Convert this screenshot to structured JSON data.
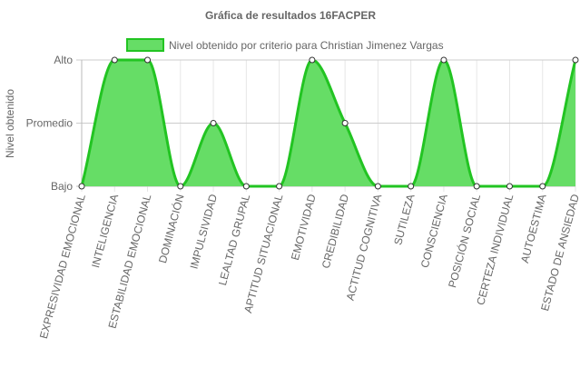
{
  "chart_data": {
    "type": "area",
    "title": "Gráfica de resultados 16FACPER",
    "ylabel": "Nivel obtenido",
    "xlabel": "",
    "y_levels": [
      "Bajo",
      "Promedio",
      "Alto"
    ],
    "ylim": [
      0,
      2
    ],
    "grid": true,
    "legend_position": "top",
    "categories": [
      "EXPRESIVIDAD EMOCIONAL",
      "INTELIGENCIA",
      "ESTABILIDAD EMOCIONAL",
      "DOMINACIÓN",
      "IMPULSIVIDAD",
      "LEALTAD GRUPAL",
      "APTITUD SITUACIONAL",
      "EMOTIVIDAD",
      "CREDIBILIDAD",
      "ACTITUD COGNITIVA",
      "SUTILEZA",
      "CONSCIENCIA",
      "POSICIÓN SOCIAL",
      "CERTEZA INDIVIDUAL",
      "AUTOESTIMA",
      "ESTADO DE ANSIEDAD"
    ],
    "series": [
      {
        "name": "Nivel obtenido por criterio para Christian Jimenez Vargas",
        "values": [
          0,
          2,
          2,
          0,
          1,
          0,
          0,
          2,
          1,
          0,
          0,
          2,
          0,
          0,
          0,
          2
        ],
        "line_color": "#22c422",
        "fill_color": "#66dd66"
      }
    ]
  }
}
